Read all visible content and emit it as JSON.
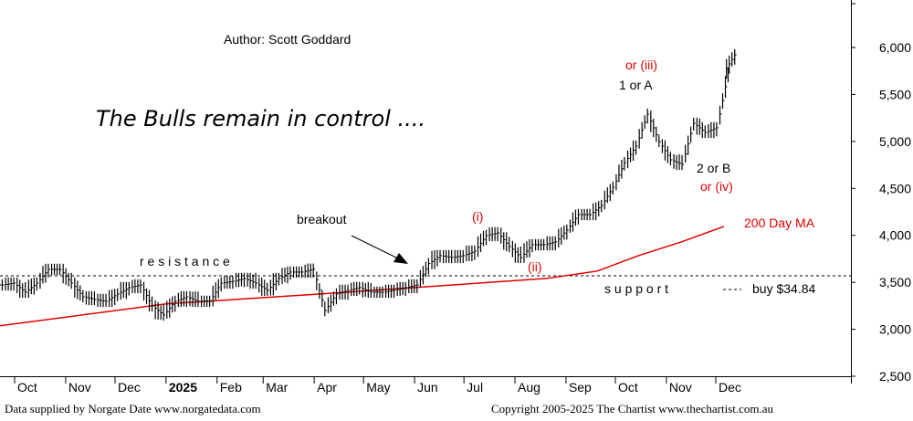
{
  "chart_data": {
    "type": "bar",
    "title": "The Bulls remain in control ....",
    "author": "Author: Scott Goddard",
    "xlabel": "",
    "ylabel": "",
    "ylim": [
      2400,
      6450
    ],
    "yticks": [
      2500,
      3000,
      3500,
      4000,
      4500,
      5000,
      5500,
      6000
    ],
    "ytick_labels": [
      "2,500",
      "3,000",
      "3,500",
      "4,000",
      "4,500",
      "5,000",
      "5,500",
      "6,000"
    ],
    "xticks": [
      {
        "date": "2024-10-01",
        "label": "Oct"
      },
      {
        "date": "2024-11-01",
        "label": "Nov"
      },
      {
        "date": "2024-12-01",
        "label": "Dec"
      },
      {
        "date": "2025-01-01",
        "label": "2025"
      },
      {
        "date": "2025-02-01",
        "label": "Feb"
      },
      {
        "date": "2025-03-01",
        "label": "Mar"
      },
      {
        "date": "2025-04-01",
        "label": "Apr"
      },
      {
        "date": "2025-05-01",
        "label": "May"
      },
      {
        "date": "2025-06-01",
        "label": "Jun"
      },
      {
        "date": "2025-07-01",
        "label": "Jul"
      },
      {
        "date": "2025-08-01",
        "label": "Aug"
      },
      {
        "date": "2025-09-01",
        "label": "Sep"
      },
      {
        "date": "2025-10-01",
        "label": "Oct"
      },
      {
        "date": "2025-11-01",
        "label": "Nov"
      },
      {
        "date": "2025-12-01",
        "label": "Dec"
      }
    ],
    "xlim": [
      "2024-09-20",
      "2025-12-10"
    ],
    "grid": false,
    "series": [
      {
        "type": "price-bars",
        "color": "#000000",
        "x": [
          "2024-09-21",
          "2024-09-28",
          "2024-10-05",
          "2024-10-12",
          "2024-10-19",
          "2024-10-26",
          "2024-11-02",
          "2024-11-09",
          "2024-11-16",
          "2024-11-23",
          "2024-11-30",
          "2024-12-07",
          "2024-12-14",
          "2024-12-21",
          "2024-12-28",
          "2025-01-04",
          "2025-01-11",
          "2025-01-18",
          "2025-01-25",
          "2025-02-01",
          "2025-02-08",
          "2025-02-15",
          "2025-02-22",
          "2025-03-01",
          "2025-03-08",
          "2025-03-15",
          "2025-03-22",
          "2025-03-29",
          "2025-04-05",
          "2025-04-12",
          "2025-04-19",
          "2025-04-26",
          "2025-05-03",
          "2025-05-10",
          "2025-05-17",
          "2025-05-24",
          "2025-05-31",
          "2025-06-07",
          "2025-06-14",
          "2025-06-21",
          "2025-06-28",
          "2025-07-05",
          "2025-07-12",
          "2025-07-19",
          "2025-07-26",
          "2025-08-02",
          "2025-08-09",
          "2025-08-16",
          "2025-08-23",
          "2025-08-30",
          "2025-09-06",
          "2025-09-13",
          "2025-09-20",
          "2025-09-27",
          "2025-10-04",
          "2025-10-11",
          "2025-10-18",
          "2025-10-25",
          "2025-11-01",
          "2025-11-08",
          "2025-11-15",
          "2025-11-22",
          "2025-11-29",
          "2025-12-06",
          "2025-12-10"
        ],
        "close": [
          3472,
          3492,
          3395,
          3492,
          3638,
          3638,
          3492,
          3346,
          3317,
          3298,
          3376,
          3444,
          3472,
          3249,
          3152,
          3298,
          3346,
          3298,
          3298,
          3492,
          3510,
          3541,
          3492,
          3415,
          3541,
          3609,
          3609,
          3640,
          3200,
          3376,
          3415,
          3444,
          3395,
          3395,
          3415,
          3444,
          3472,
          3700,
          3784,
          3765,
          3784,
          3832,
          3998,
          4027,
          3881,
          3765,
          3900,
          3900,
          3930,
          4056,
          4221,
          4221,
          4318,
          4513,
          4775,
          4950,
          5290,
          4999,
          4804,
          4756,
          5193,
          5096,
          5145,
          5728,
          5922
        ]
      },
      {
        "name": "200 Day MA",
        "type": "line",
        "color": "#e00000",
        "x": [
          "2024-09-21",
          "2025-01-01",
          "2025-04-05",
          "2025-06-01",
          "2025-08-20",
          "2025-09-20",
          "2025-10-15",
          "2025-11-10",
          "2025-12-06"
        ],
        "y": [
          3035,
          3270,
          3376,
          3444,
          3541,
          3620,
          3784,
          3930,
          4095
        ]
      }
    ],
    "levels": [
      {
        "label": "resistance / support",
        "value": 3570,
        "style": "dashed"
      }
    ],
    "annotations": {
      "resistance": "r e s i s t a n c e",
      "support": "s u p p o r t",
      "breakout": "breakout",
      "wave_i": "(i)",
      "wave_ii": "(ii)",
      "wave_iii": "or (iii)",
      "wave_1A": "1 or A",
      "wave_2B": "2 or B",
      "wave_iv": "or (iv)",
      "ma_label": "200 Day MA",
      "buy": "buy $34.84"
    }
  },
  "footer": {
    "left": "Data supplied by Norgate Date www.norgatedata.com",
    "right": "Copyright 2005-2025 The Chartist www.thechartist.com.au"
  }
}
